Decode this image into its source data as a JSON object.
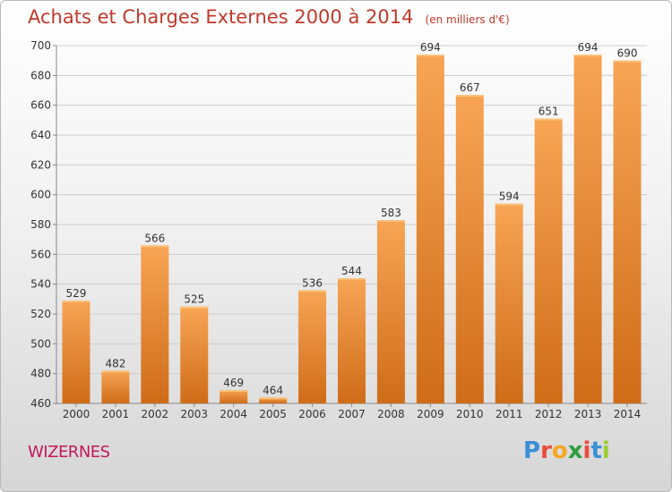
{
  "header": {
    "title": "Achats et Charges Externes 2000 à 2014",
    "unit": "(en milliers d'€)"
  },
  "footer": {
    "city": "WIZERNES",
    "logo_letters": [
      {
        "char": "P",
        "color": "#3a8fd6"
      },
      {
        "char": "r",
        "color": "#e94b3c"
      },
      {
        "char": "o",
        "color": "#f5a623"
      },
      {
        "char": "x",
        "color": "#2e9e3e"
      },
      {
        "char": "i",
        "color": "#e94b3c"
      },
      {
        "char": "t",
        "color": "#3a8fd6"
      },
      {
        "char": "i",
        "color": "#9acd32"
      }
    ]
  },
  "colors": {
    "title": "#c0392b",
    "city": "#c2185b",
    "bar_top": "#f7a555",
    "bar_bottom": "#cf6c18",
    "grid": "#cccccc"
  },
  "chart_data": {
    "type": "bar",
    "categories": [
      "2000",
      "2001",
      "2002",
      "2003",
      "2004",
      "2005",
      "2006",
      "2007",
      "2008",
      "2009",
      "2010",
      "2011",
      "2012",
      "2013",
      "2014"
    ],
    "values": [
      529,
      482,
      566,
      525,
      469,
      464,
      536,
      544,
      583,
      694,
      667,
      594,
      651,
      694,
      690
    ],
    "ylim": [
      460,
      700
    ],
    "yticks": [
      460,
      480,
      500,
      520,
      540,
      560,
      580,
      600,
      620,
      640,
      660,
      680,
      700
    ],
    "grid": true,
    "legend": "none"
  }
}
